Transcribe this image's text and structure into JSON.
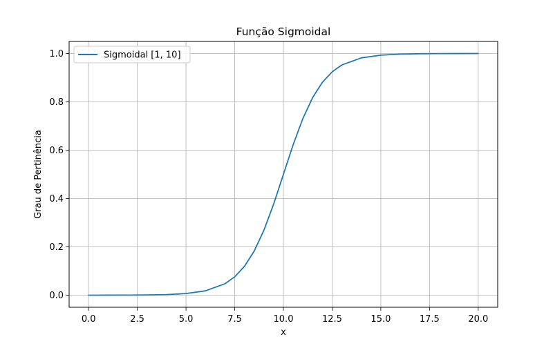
{
  "chart_data": {
    "type": "line",
    "title": "Função Sigmoidal",
    "xlabel": "x",
    "ylabel": "Grau de Pertinência",
    "xlim": [
      -1.0,
      21.0
    ],
    "ylim": [
      -0.05,
      1.05
    ],
    "x_ticks": [
      "0.0",
      "2.5",
      "5.0",
      "7.5",
      "10.0",
      "12.5",
      "15.0",
      "17.5",
      "20.0"
    ],
    "y_ticks": [
      "0.0",
      "0.2",
      "0.4",
      "0.6",
      "0.8",
      "1.0"
    ],
    "grid": true,
    "legend_position": "upper-left",
    "series": [
      {
        "name": "Sigmoidal [1, 10]",
        "color": "#1f77b4",
        "x": [
          0,
          1,
          2,
          3,
          4,
          5,
          6,
          7,
          7.5,
          8,
          8.5,
          9,
          9.5,
          10,
          10.5,
          11,
          11.5,
          12,
          12.5,
          13,
          14,
          15,
          16,
          17,
          18,
          19,
          20
        ],
        "y": [
          0.0,
          0.0001,
          0.0003,
          0.0009,
          0.0025,
          0.0067,
          0.018,
          0.0474,
          0.0759,
          0.1192,
          0.1824,
          0.2689,
          0.3775,
          0.5,
          0.6225,
          0.7311,
          0.8176,
          0.8808,
          0.9241,
          0.9526,
          0.982,
          0.9933,
          0.9975,
          0.9991,
          0.9997,
          0.9999,
          1.0
        ]
      }
    ]
  }
}
